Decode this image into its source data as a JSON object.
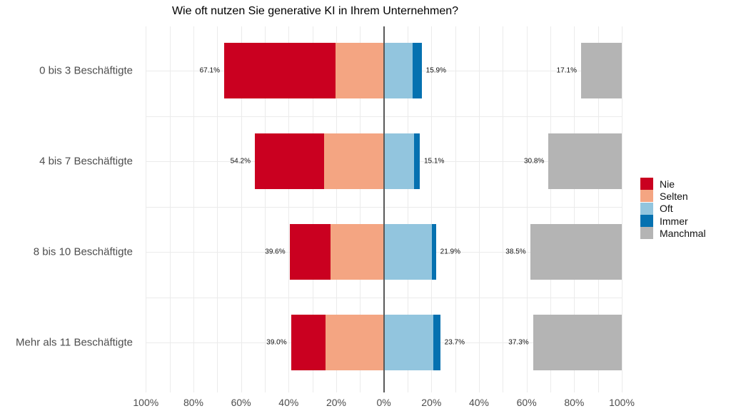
{
  "chart_data": {
    "type": "bar",
    "variant": "diverging-stacked-horizontal",
    "title": "Wie oft nutzen Sie generative KI in Ihrem Unternehmen?",
    "xlabel": "",
    "ylabel": "",
    "x_axis": {
      "min": -100,
      "max": 100,
      "tick_step": 20,
      "grid_step": 10,
      "tick_labels": [
        "100%",
        "80%",
        "60%",
        "40%",
        "20%",
        "0%",
        "20%",
        "40%",
        "60%",
        "80%",
        "100%"
      ]
    },
    "grid": true,
    "legend_position": "right",
    "legend": [
      {
        "name": "Nie",
        "color": "#ca0020"
      },
      {
        "name": "Selten",
        "color": "#f4a582"
      },
      {
        "name": "Oft",
        "color": "#92c5de"
      },
      {
        "name": "Immer",
        "color": "#0571b0"
      },
      {
        "name": "Manchmal",
        "color": "#b4b4b4"
      }
    ],
    "categories": [
      "0 bis 3 Beschäftigte",
      "4 bis 7 Beschäftigte",
      "8 bis 10 Beschäftigte",
      "Mehr als 11 Beschäftigte"
    ],
    "rows": [
      {
        "category": "0 bis 3 Beschäftigte",
        "left_total": 67.1,
        "left_total_label": "67.1%",
        "right_total": 15.9,
        "right_total_label": "15.9%",
        "manchmal": 17.1,
        "manchmal_label": "17.1%",
        "segments_left": {
          "Nie": 46.9,
          "Selten": 20.2
        },
        "segments_right": {
          "Oft": 12.2,
          "Immer": 3.7
        }
      },
      {
        "category": "4 bis 7 Beschäftigte",
        "left_total": 54.2,
        "left_total_label": "54.2%",
        "right_total": 15.1,
        "right_total_label": "15.1%",
        "manchmal": 30.8,
        "manchmal_label": "30.8%",
        "segments_left": {
          "Nie": 29.2,
          "Selten": 25.0
        },
        "segments_right": {
          "Oft": 12.7,
          "Immer": 2.4
        }
      },
      {
        "category": "8 bis 10 Beschäftigte",
        "left_total": 39.6,
        "left_total_label": "39.6%",
        "right_total": 21.9,
        "right_total_label": "21.9%",
        "manchmal": 38.5,
        "manchmal_label": "38.5%",
        "segments_left": {
          "Nie": 17.1,
          "Selten": 22.5
        },
        "segments_right": {
          "Oft": 20.3,
          "Immer": 1.6
        }
      },
      {
        "category": "Mehr als 11 Beschäftigte",
        "left_total": 39.0,
        "left_total_label": "39.0%",
        "right_total": 23.7,
        "right_total_label": "23.7%",
        "manchmal": 37.3,
        "manchmal_label": "37.3%",
        "segments_left": {
          "Nie": 14.4,
          "Selten": 24.6
        },
        "segments_right": {
          "Oft": 20.7,
          "Immer": 3.0
        }
      }
    ],
    "notes": "Nie+Selten stacked to the left of 0; Oft+Immer stacked to the right of 0; Manchmal drawn as separate grey bar right-anchored at 100%. Segment splits estimated from pixels; totals are the printed data labels.",
    "colors": {
      "grid": "#ebebeb",
      "zero_line": "#595959",
      "axis_text": "#4d4d4d",
      "label_text": "#111111",
      "title_text": "#000000",
      "background": "#ffffff"
    }
  }
}
